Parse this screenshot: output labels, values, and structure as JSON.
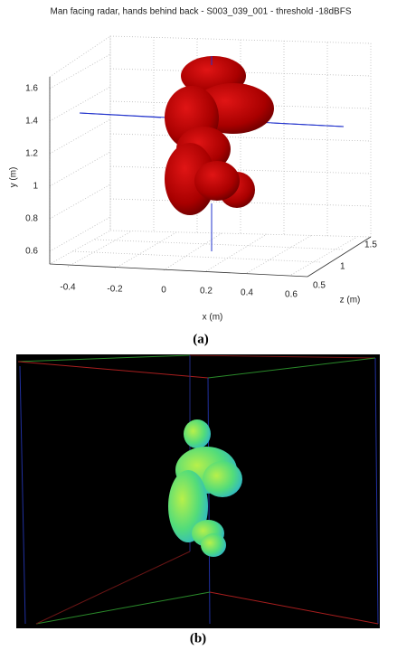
{
  "panel_a": {
    "title": "Man facing radar, hands behind back - S003_039_001 - threshold -18dBFS",
    "y_label": "y (m)",
    "x_label": "x (m)",
    "z_label": "z (m)",
    "y_ticks": [
      "1.6",
      "1.4",
      "1.2",
      "1",
      "0.8",
      "0.6"
    ],
    "x_ticks": [
      "-0.4",
      "-0.2",
      "0",
      "0.2",
      "0.4",
      "0.6"
    ],
    "z_ticks": [
      "0.5",
      "1",
      "1.5"
    ],
    "caption": "(a)"
  },
  "panel_b": {
    "caption": "(b)"
  }
}
